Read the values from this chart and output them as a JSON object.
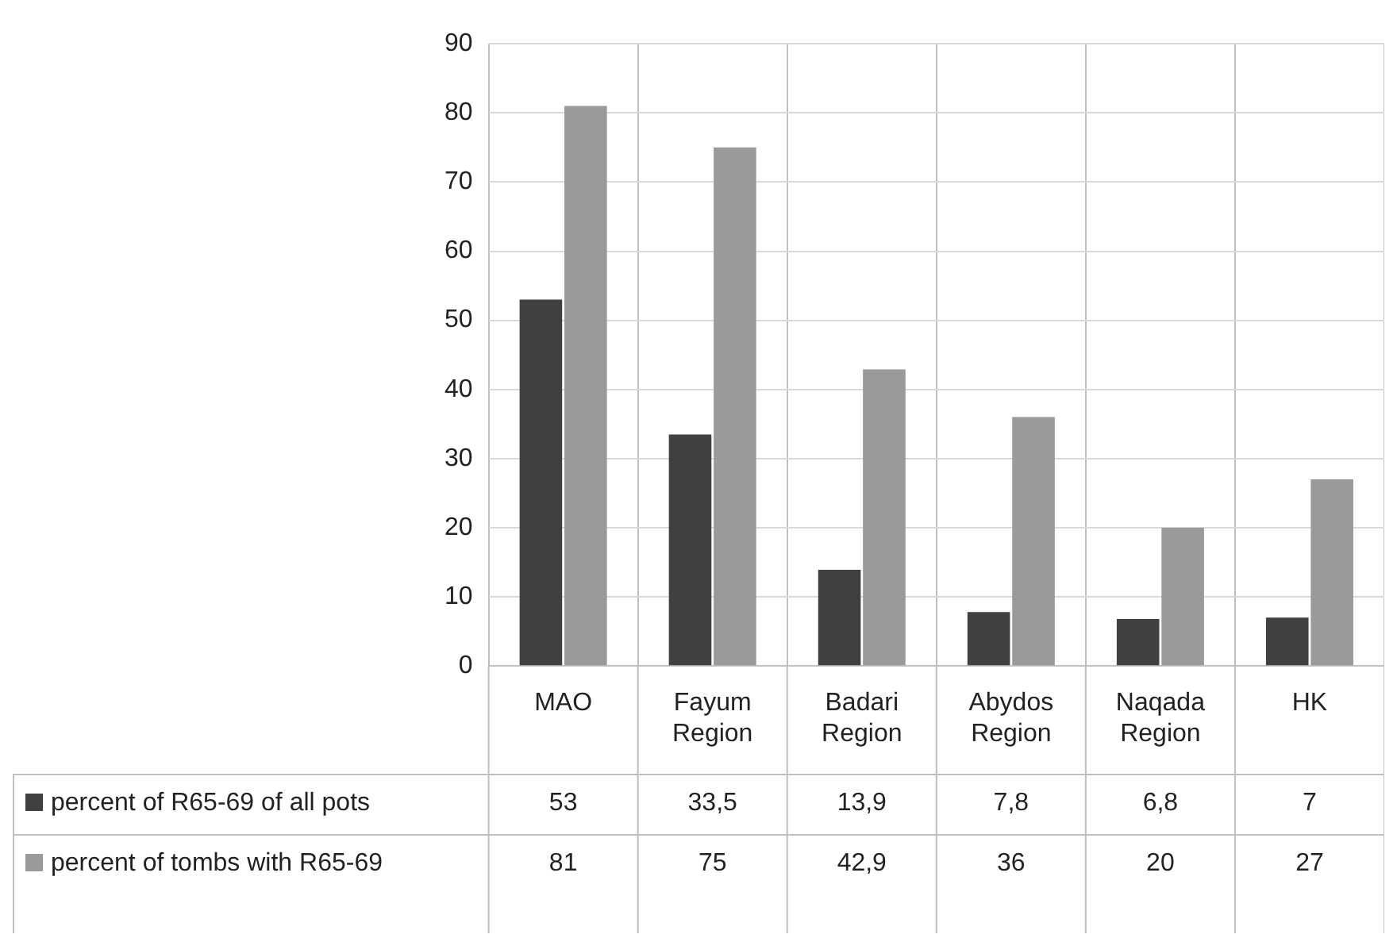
{
  "chart_data": {
    "type": "bar",
    "categories": [
      "MAO",
      "Fayum Region",
      "Badari Region",
      "Abydos Region",
      "Naqada Region",
      "HK"
    ],
    "series": [
      {
        "name": "percent of R65-69 of all pots",
        "color": "#404040",
        "values": [
          53,
          33.5,
          13.9,
          7.8,
          6.8,
          7
        ],
        "value_labels": [
          "53",
          "33,5",
          "13,9",
          "7,8",
          "6,8",
          "7"
        ]
      },
      {
        "name": "percent of tombs with R65-69",
        "color": "#9a9a9a",
        "values": [
          81,
          75,
          42.9,
          36,
          20,
          27
        ],
        "value_labels": [
          "81",
          "75",
          "42,9",
          "36",
          "20",
          "27"
        ]
      }
    ],
    "ylim": [
      0,
      90
    ],
    "yticks": [
      0,
      10,
      20,
      30,
      40,
      50,
      60,
      70,
      80,
      90
    ],
    "grid": true,
    "legend": "bottom"
  }
}
